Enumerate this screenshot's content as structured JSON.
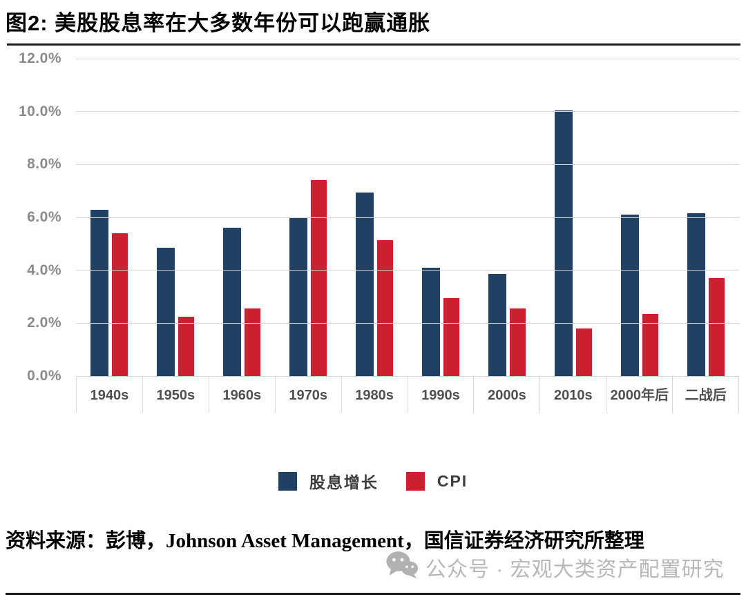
{
  "page": {
    "title": "图2: 美股股息率在大多数年份可以跑赢通胀",
    "source_note": "资料来源：彭博，Johnson Asset Management，国信证券经济研究所整理",
    "watermark_text": "公众号 · 宏观大类资产配置研究"
  },
  "chart_data": {
    "type": "bar",
    "title": "美股股息率在大多数年份可以跑赢通胀",
    "categories": [
      "1940s",
      "1950s",
      "1960s",
      "1970s",
      "1980s",
      "1990s",
      "2000s",
      "2010s",
      "2000年后",
      "二战后"
    ],
    "series": [
      {
        "name": "股息增长",
        "color": "#1f4163",
        "values": [
          6.3,
          4.85,
          5.6,
          6.0,
          6.95,
          4.1,
          3.85,
          10.05,
          6.1,
          6.15
        ]
      },
      {
        "name": "CPI",
        "color": "#cb2030",
        "values": [
          5.4,
          2.25,
          2.55,
          7.4,
          5.15,
          2.95,
          2.55,
          1.8,
          2.35,
          3.7
        ]
      }
    ],
    "xlabel": "",
    "ylabel": "",
    "ylim": [
      0,
      12
    ],
    "yticks": [
      "12.0%",
      "10.0%",
      "8.0%",
      "6.0%",
      "4.0%",
      "2.0%",
      "0.0%"
    ],
    "grid": true,
    "legend_position": "bottom"
  }
}
